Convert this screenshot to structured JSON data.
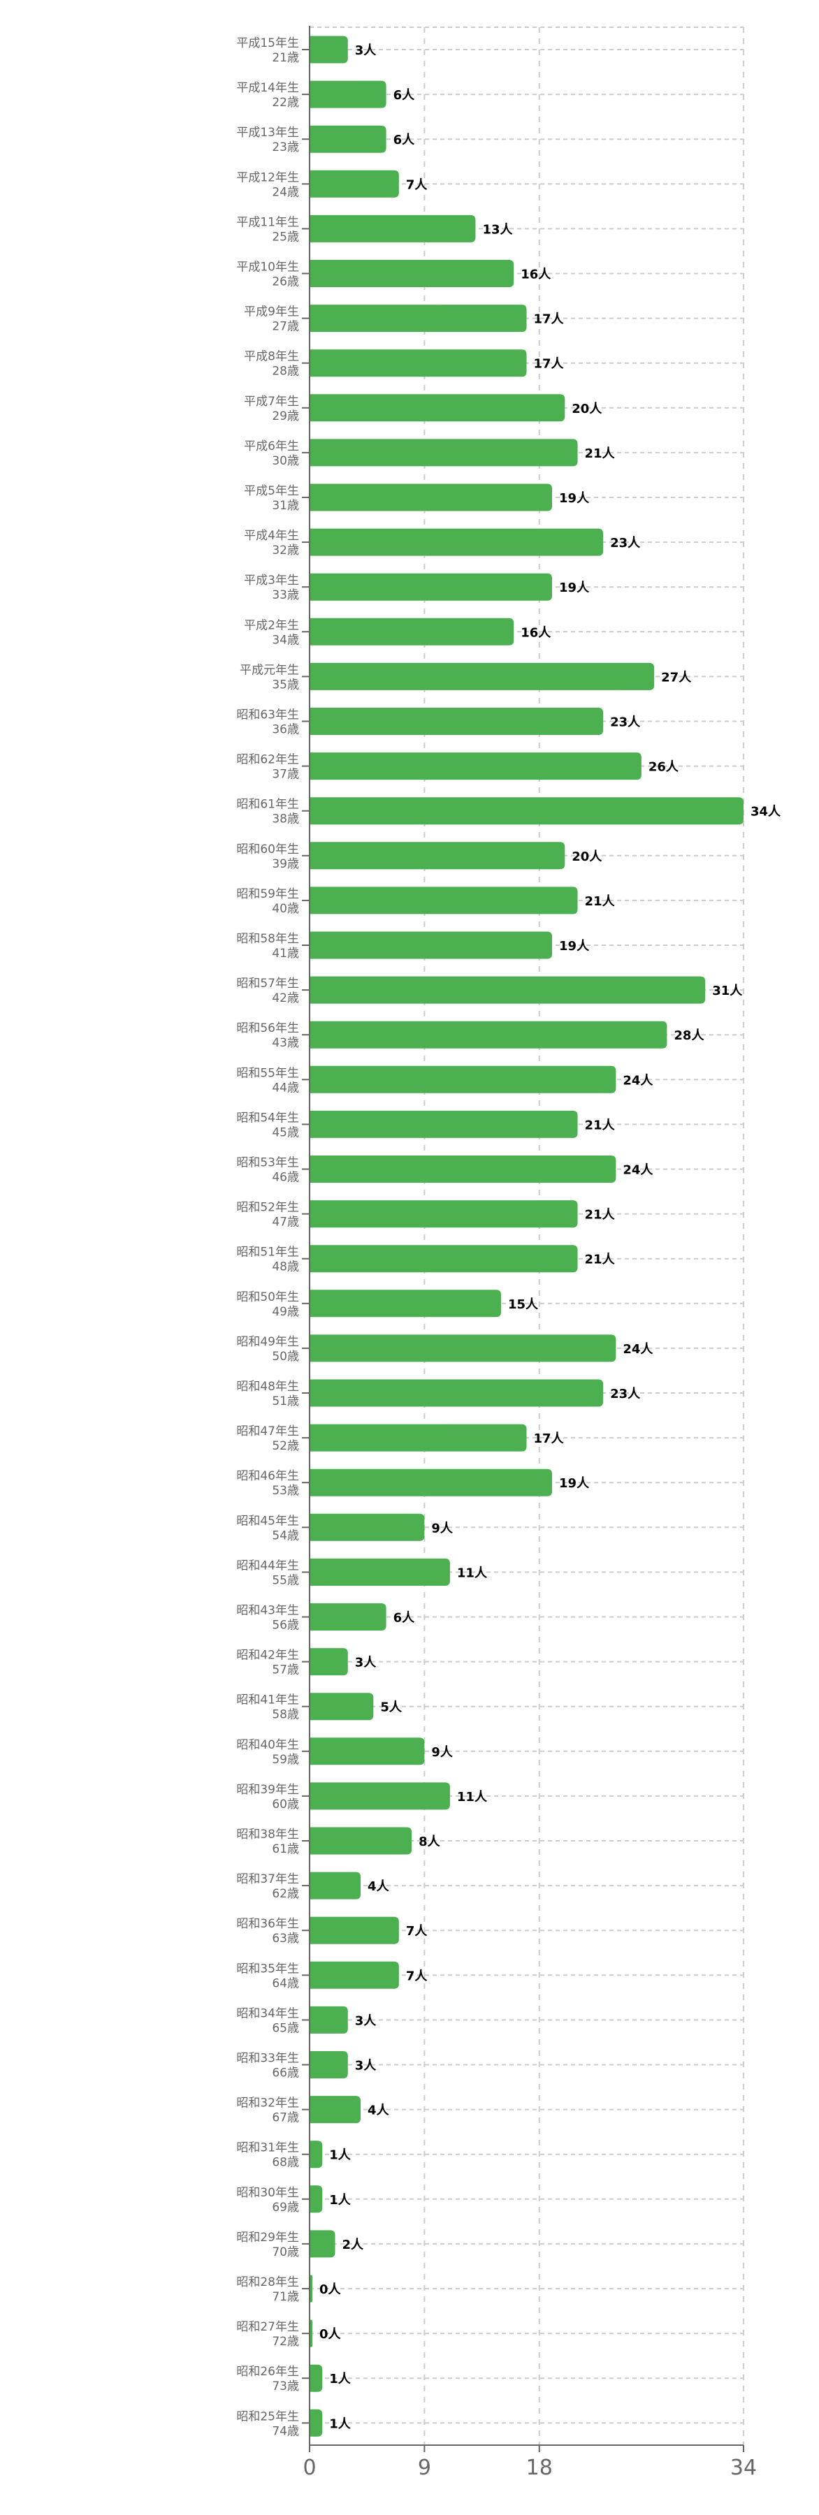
{
  "chart_data": {
    "type": "bar",
    "orientation": "horizontal",
    "title": "",
    "xlabel": "",
    "ylabel": "",
    "xlim": [
      0,
      34
    ],
    "xticks": [
      0,
      9,
      18,
      34
    ],
    "grid": true,
    "value_suffix": "人",
    "bar_color": "#4caf50",
    "categories": [
      {
        "line1": "平成15年生",
        "line2": "21歳"
      },
      {
        "line1": "平成14年生",
        "line2": "22歳"
      },
      {
        "line1": "平成13年生",
        "line2": "23歳"
      },
      {
        "line1": "平成12年生",
        "line2": "24歳"
      },
      {
        "line1": "平成11年生",
        "line2": "25歳"
      },
      {
        "line1": "平成10年生",
        "line2": "26歳"
      },
      {
        "line1": "平成9年生",
        "line2": "27歳"
      },
      {
        "line1": "平成8年生",
        "line2": "28歳"
      },
      {
        "line1": "平成7年生",
        "line2": "29歳"
      },
      {
        "line1": "平成6年生",
        "line2": "30歳"
      },
      {
        "line1": "平成5年生",
        "line2": "31歳"
      },
      {
        "line1": "平成4年生",
        "line2": "32歳"
      },
      {
        "line1": "平成3年生",
        "line2": "33歳"
      },
      {
        "line1": "平成2年生",
        "line2": "34歳"
      },
      {
        "line1": "平成元年生",
        "line2": "35歳"
      },
      {
        "line1": "昭和63年生",
        "line2": "36歳"
      },
      {
        "line1": "昭和62年生",
        "line2": "37歳"
      },
      {
        "line1": "昭和61年生",
        "line2": "38歳"
      },
      {
        "line1": "昭和60年生",
        "line2": "39歳"
      },
      {
        "line1": "昭和59年生",
        "line2": "40歳"
      },
      {
        "line1": "昭和58年生",
        "line2": "41歳"
      },
      {
        "line1": "昭和57年生",
        "line2": "42歳"
      },
      {
        "line1": "昭和56年生",
        "line2": "43歳"
      },
      {
        "line1": "昭和55年生",
        "line2": "44歳"
      },
      {
        "line1": "昭和54年生",
        "line2": "45歳"
      },
      {
        "line1": "昭和53年生",
        "line2": "46歳"
      },
      {
        "line1": "昭和52年生",
        "line2": "47歳"
      },
      {
        "line1": "昭和51年生",
        "line2": "48歳"
      },
      {
        "line1": "昭和50年生",
        "line2": "49歳"
      },
      {
        "line1": "昭和49年生",
        "line2": "50歳"
      },
      {
        "line1": "昭和48年生",
        "line2": "51歳"
      },
      {
        "line1": "昭和47年生",
        "line2": "52歳"
      },
      {
        "line1": "昭和46年生",
        "line2": "53歳"
      },
      {
        "line1": "昭和45年生",
        "line2": "54歳"
      },
      {
        "line1": "昭和44年生",
        "line2": "55歳"
      },
      {
        "line1": "昭和43年生",
        "line2": "56歳"
      },
      {
        "line1": "昭和42年生",
        "line2": "57歳"
      },
      {
        "line1": "昭和41年生",
        "line2": "58歳"
      },
      {
        "line1": "昭和40年生",
        "line2": "59歳"
      },
      {
        "line1": "昭和39年生",
        "line2": "60歳"
      },
      {
        "line1": "昭和38年生",
        "line2": "61歳"
      },
      {
        "line1": "昭和37年生",
        "line2": "62歳"
      },
      {
        "line1": "昭和36年生",
        "line2": "63歳"
      },
      {
        "line1": "昭和35年生",
        "line2": "64歳"
      },
      {
        "line1": "昭和34年生",
        "line2": "65歳"
      },
      {
        "line1": "昭和33年生",
        "line2": "66歳"
      },
      {
        "line1": "昭和32年生",
        "line2": "67歳"
      },
      {
        "line1": "昭和31年生",
        "line2": "68歳"
      },
      {
        "line1": "昭和30年生",
        "line2": "69歳"
      },
      {
        "line1": "昭和29年生",
        "line2": "70歳"
      },
      {
        "line1": "昭和28年生",
        "line2": "71歳"
      },
      {
        "line1": "昭和27年生",
        "line2": "72歳"
      },
      {
        "line1": "昭和26年生",
        "line2": "73歳"
      },
      {
        "line1": "昭和25年生",
        "line2": "74歳"
      }
    ],
    "values": [
      3,
      6,
      6,
      7,
      13,
      16,
      17,
      17,
      20,
      21,
      19,
      23,
      19,
      16,
      27,
      23,
      26,
      34,
      20,
      21,
      19,
      31,
      28,
      24,
      21,
      24,
      21,
      21,
      15,
      24,
      23,
      17,
      19,
      9,
      11,
      6,
      3,
      5,
      9,
      11,
      8,
      4,
      7,
      7,
      3,
      3,
      4,
      1,
      1,
      2,
      0,
      0,
      1,
      1
    ]
  }
}
